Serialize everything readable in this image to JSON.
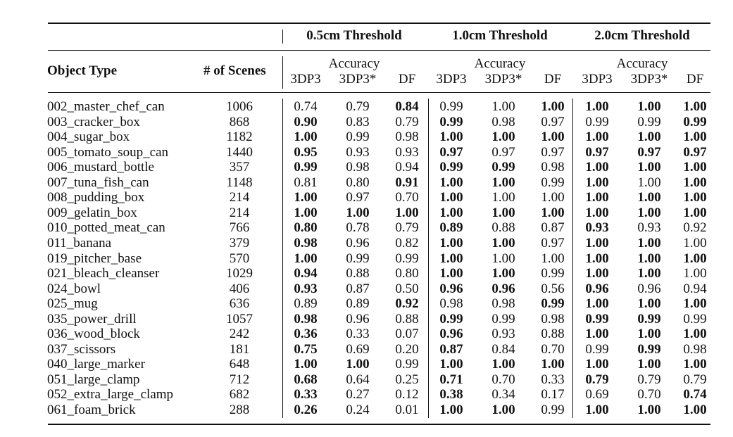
{
  "table": {
    "header": {
      "object_type": "Object Type",
      "num_scenes": "# of Scenes",
      "groups": [
        "0.5cm Threshold",
        "1.0cm Threshold",
        "2.0cm Threshold"
      ],
      "accuracy": "Accuracy",
      "methods": [
        "3DP3",
        "3DP3*",
        "DF"
      ]
    },
    "rows": [
      {
        "name": "002_master_chef_can",
        "scenes": "1006",
        "vals": [
          "0.74",
          "0.79",
          "0.84",
          "0.99",
          "1.00",
          "1.00",
          "1.00",
          "1.00",
          "1.00"
        ],
        "bold": [
          0,
          0,
          1,
          0,
          0,
          1,
          1,
          1,
          1
        ]
      },
      {
        "name": "003_cracker_box",
        "scenes": "868",
        "vals": [
          "0.90",
          "0.83",
          "0.79",
          "0.99",
          "0.98",
          "0.97",
          "0.99",
          "0.99",
          "0.99"
        ],
        "bold": [
          1,
          0,
          0,
          1,
          0,
          0,
          0,
          0,
          1
        ]
      },
      {
        "name": "004_sugar_box",
        "scenes": "1182",
        "vals": [
          "1.00",
          "0.99",
          "0.98",
          "1.00",
          "1.00",
          "1.00",
          "1.00",
          "1.00",
          "1.00"
        ],
        "bold": [
          1,
          0,
          0,
          1,
          1,
          1,
          1,
          1,
          1
        ]
      },
      {
        "name": "005_tomato_soup_can",
        "scenes": "1440",
        "vals": [
          "0.95",
          "0.93",
          "0.93",
          "0.97",
          "0.97",
          "0.97",
          "0.97",
          "0.97",
          "0.97"
        ],
        "bold": [
          1,
          0,
          0,
          1,
          0,
          0,
          1,
          1,
          1
        ]
      },
      {
        "name": "006_mustard_bottle",
        "scenes": "357",
        "vals": [
          "0.99",
          "0.98",
          "0.94",
          "0.99",
          "0.99",
          "0.98",
          "1.00",
          "1.00",
          "1.00"
        ],
        "bold": [
          1,
          0,
          0,
          1,
          1,
          0,
          1,
          1,
          1
        ]
      },
      {
        "name": "007_tuna_fish_can",
        "scenes": "1148",
        "vals": [
          "0.81",
          "0.80",
          "0.91",
          "1.00",
          "1.00",
          "0.99",
          "1.00",
          "1.00",
          "1.00"
        ],
        "bold": [
          0,
          0,
          1,
          1,
          1,
          0,
          1,
          0,
          1
        ]
      },
      {
        "name": "008_pudding_box",
        "scenes": "214",
        "vals": [
          "1.00",
          "0.97",
          "0.70",
          "1.00",
          "1.00",
          "1.00",
          "1.00",
          "1.00",
          "1.00"
        ],
        "bold": [
          1,
          0,
          0,
          1,
          0,
          0,
          1,
          1,
          1
        ]
      },
      {
        "name": "009_gelatin_box",
        "scenes": "214",
        "vals": [
          "1.00",
          "1.00",
          "1.00",
          "1.00",
          "1.00",
          "1.00",
          "1.00",
          "1.00",
          "1.00"
        ],
        "bold": [
          1,
          1,
          1,
          1,
          1,
          1,
          1,
          1,
          1
        ]
      },
      {
        "name": "010_potted_meat_can",
        "scenes": "766",
        "vals": [
          "0.80",
          "0.78",
          "0.79",
          "0.89",
          "0.88",
          "0.87",
          "0.93",
          "0.93",
          "0.92"
        ],
        "bold": [
          1,
          0,
          0,
          1,
          0,
          0,
          1,
          0,
          0
        ]
      },
      {
        "name": "011_banana",
        "scenes": "379",
        "vals": [
          "0.98",
          "0.96",
          "0.82",
          "1.00",
          "1.00",
          "0.97",
          "1.00",
          "1.00",
          "1.00"
        ],
        "bold": [
          1,
          0,
          0,
          1,
          1,
          0,
          1,
          1,
          0
        ]
      },
      {
        "name": "019_pitcher_base",
        "scenes": "570",
        "vals": [
          "1.00",
          "0.99",
          "0.99",
          "1.00",
          "1.00",
          "1.00",
          "1.00",
          "1.00",
          "1.00"
        ],
        "bold": [
          1,
          0,
          0,
          1,
          0,
          0,
          1,
          1,
          1
        ]
      },
      {
        "name": "021_bleach_cleanser",
        "scenes": "1029",
        "vals": [
          "0.94",
          "0.88",
          "0.80",
          "1.00",
          "1.00",
          "0.99",
          "1.00",
          "1.00",
          "1.00"
        ],
        "bold": [
          1,
          0,
          0,
          1,
          1,
          0,
          1,
          1,
          0
        ]
      },
      {
        "name": "024_bowl",
        "scenes": "406",
        "vals": [
          "0.93",
          "0.87",
          "0.50",
          "0.96",
          "0.96",
          "0.56",
          "0.96",
          "0.96",
          "0.94"
        ],
        "bold": [
          1,
          0,
          0,
          1,
          1,
          0,
          1,
          0,
          0
        ]
      },
      {
        "name": "025_mug",
        "scenes": "636",
        "vals": [
          "0.89",
          "0.89",
          "0.92",
          "0.98",
          "0.98",
          "0.99",
          "1.00",
          "1.00",
          "1.00"
        ],
        "bold": [
          0,
          0,
          1,
          0,
          0,
          1,
          1,
          1,
          1
        ]
      },
      {
        "name": "035_power_drill",
        "scenes": "1057",
        "vals": [
          "0.98",
          "0.96",
          "0.88",
          "0.99",
          "0.99",
          "0.98",
          "0.99",
          "0.99",
          "0.99"
        ],
        "bold": [
          1,
          0,
          0,
          1,
          0,
          0,
          1,
          1,
          0
        ]
      },
      {
        "name": "036_wood_block",
        "scenes": "242",
        "vals": [
          "0.36",
          "0.33",
          "0.07",
          "0.96",
          "0.93",
          "0.88",
          "1.00",
          "1.00",
          "1.00"
        ],
        "bold": [
          1,
          0,
          0,
          1,
          0,
          0,
          1,
          1,
          1
        ]
      },
      {
        "name": "037_scissors",
        "scenes": "181",
        "vals": [
          "0.75",
          "0.69",
          "0.20",
          "0.87",
          "0.84",
          "0.70",
          "0.99",
          "0.99",
          "0.98"
        ],
        "bold": [
          1,
          0,
          0,
          1,
          0,
          0,
          0,
          1,
          0
        ]
      },
      {
        "name": "040_large_marker",
        "scenes": "648",
        "vals": [
          "1.00",
          "1.00",
          "0.99",
          "1.00",
          "1.00",
          "1.00",
          "1.00",
          "1.00",
          "1.00"
        ],
        "bold": [
          1,
          1,
          0,
          1,
          1,
          1,
          1,
          1,
          1
        ]
      },
      {
        "name": "051_large_clamp",
        "scenes": "712",
        "vals": [
          "0.68",
          "0.64",
          "0.25",
          "0.71",
          "0.70",
          "0.33",
          "0.79",
          "0.79",
          "0.79"
        ],
        "bold": [
          1,
          0,
          0,
          1,
          0,
          0,
          1,
          0,
          0
        ]
      },
      {
        "name": "052_extra_large_clamp",
        "scenes": "682",
        "vals": [
          "0.33",
          "0.27",
          "0.12",
          "0.38",
          "0.34",
          "0.17",
          "0.69",
          "0.70",
          "0.74"
        ],
        "bold": [
          1,
          0,
          0,
          1,
          0,
          0,
          0,
          0,
          1
        ]
      },
      {
        "name": "061_foam_brick",
        "scenes": "288",
        "vals": [
          "0.26",
          "0.24",
          "0.01",
          "1.00",
          "1.00",
          "0.99",
          "1.00",
          "1.00",
          "1.00"
        ],
        "bold": [
          1,
          0,
          0,
          1,
          1,
          0,
          1,
          1,
          1
        ]
      }
    ]
  }
}
